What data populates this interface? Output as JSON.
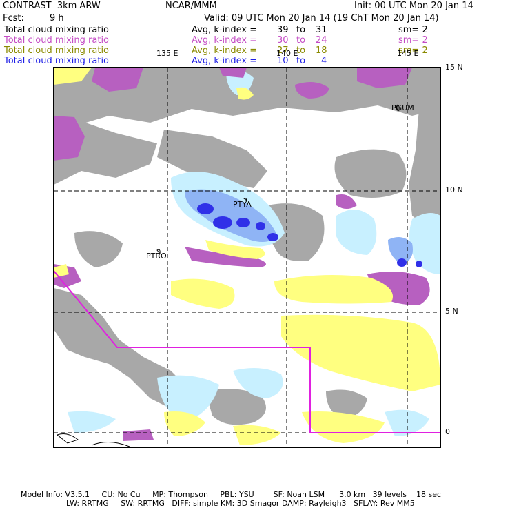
{
  "header": {
    "title_left": "CONTRAST  3km ARW",
    "title_center": "NCAR/MMM",
    "init": "Init: 00 UTC Mon 20 Jan 14",
    "fcst_label": "Fcst:",
    "fcst_value": "9 h",
    "valid": "Valid: 09 UTC Mon 20 Jan 14 (19 ChT Mon 20 Jan 14)"
  },
  "fields": [
    {
      "name": "Total cloud mixing ratio",
      "avg": "Avg, k-index =",
      "k_from": "39",
      "to": "to",
      "k_to": "31",
      "sm": "sm= 2",
      "color": "#000000"
    },
    {
      "name": "Total cloud mixing ratio",
      "avg": "Avg, k-index =",
      "k_from": "30",
      "to": "to",
      "k_to": "24",
      "sm": "sm= 2",
      "color": "#c44cc4"
    },
    {
      "name": "Total cloud mixing ratio",
      "avg": "Avg, k-index =",
      "k_from": "27",
      "to": "to",
      "k_to": "18",
      "sm": "sm= 2",
      "color": "#8a8a00"
    },
    {
      "name": "Total cloud mixing ratio",
      "avg": "Avg, k-index =",
      "k_from": "10",
      "to": "to",
      "k_to": "4",
      "sm": "",
      "color": "#1e1ee6"
    }
  ],
  "map": {
    "longitude_labels": [
      "135 E",
      "140 E",
      "145 E"
    ],
    "latitude_labels": [
      "15 N",
      "10 N",
      "5 N",
      "0"
    ],
    "stations": [
      "PGUM",
      "PTYA",
      "PTRO"
    ],
    "colors": {
      "gray": "#a8a8a8",
      "magenta": "#b760c0",
      "yellow": "#ffff80",
      "lightblue": "#c8f0ff",
      "midblue": "#8fb4f5",
      "blue": "#3030e8",
      "boundary": "#e020e0"
    }
  },
  "footer": {
    "line1": "Model Info: V3.5.1     CU: No Cu     MP: Thompson     PBL: YSU        SF: Noah LSM      3.0 km   39 levels    18 sec",
    "line2": "LW: RRTMG     SW: RRTMG   DIFF: simple KM: 3D Smagor DAMP: Rayleigh3   SFLAY: Rev MM5"
  }
}
